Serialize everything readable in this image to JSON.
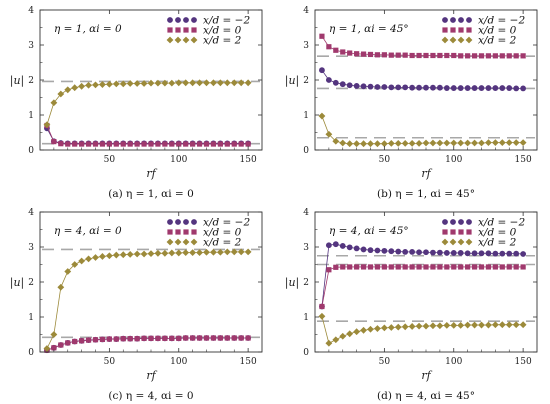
{
  "colors": {
    "xd_m2": "#54357f",
    "xd_0": "#a0396d",
    "xd_2": "#9c8a3a",
    "dash": "#a8a8a8",
    "axis": "#333333"
  },
  "chart_data": [
    {
      "type": "scatter",
      "inner_label": "η = 1, αi = 0",
      "caption": "(a)  η = 1, αi = 0",
      "xlabel": "rf",
      "ylabel": "|u|",
      "xlim": [
        0,
        160
      ],
      "ylim": [
        0,
        4
      ],
      "xticks": [
        "50",
        "100",
        "150"
      ],
      "yticks": [
        "0",
        "1",
        "2",
        "3",
        "4"
      ],
      "legend_position": "top-right",
      "x": [
        5,
        10,
        15,
        20,
        25,
        30,
        35,
        40,
        45,
        50,
        55,
        60,
        65,
        70,
        75,
        80,
        85,
        90,
        95,
        100,
        105,
        110,
        115,
        120,
        125,
        130,
        135,
        140,
        145,
        150
      ],
      "series": [
        {
          "name": "x/d = −2",
          "marker": "circle",
          "values": [
            0.62,
            0.25,
            0.2,
            0.19,
            0.19,
            0.19,
            0.19,
            0.19,
            0.19,
            0.19,
            0.19,
            0.19,
            0.19,
            0.19,
            0.19,
            0.19,
            0.19,
            0.19,
            0.19,
            0.19,
            0.19,
            0.19,
            0.19,
            0.19,
            0.19,
            0.19,
            0.19,
            0.19,
            0.19,
            0.19
          ]
        },
        {
          "name": "x/d = 0",
          "marker": "square",
          "values": [
            0.7,
            0.24,
            0.18,
            0.17,
            0.17,
            0.17,
            0.17,
            0.17,
            0.17,
            0.17,
            0.17,
            0.17,
            0.17,
            0.17,
            0.17,
            0.17,
            0.17,
            0.17,
            0.17,
            0.17,
            0.17,
            0.17,
            0.17,
            0.17,
            0.17,
            0.17,
            0.17,
            0.17,
            0.17,
            0.17
          ]
        },
        {
          "name": "x/d = 2",
          "marker": "diamond",
          "values": [
            0.72,
            1.35,
            1.6,
            1.72,
            1.78,
            1.82,
            1.85,
            1.86,
            1.87,
            1.88,
            1.89,
            1.89,
            1.9,
            1.9,
            1.9,
            1.91,
            1.91,
            1.91,
            1.91,
            1.92,
            1.92,
            1.92,
            1.92,
            1.92,
            1.92,
            1.92,
            1.92,
            1.92,
            1.92,
            1.92
          ]
        }
      ],
      "reference_lines": [
        1.96,
        0.18
      ]
    },
    {
      "type": "scatter",
      "inner_label": "η = 1, αi = 45°",
      "caption": "(b)  η = 1, αi = 45°",
      "xlabel": "rf",
      "ylabel": "|u|",
      "xlim": [
        0,
        160
      ],
      "ylim": [
        0,
        4
      ],
      "xticks": [
        "50",
        "100",
        "150"
      ],
      "yticks": [
        "0",
        "1",
        "2",
        "3",
        "4"
      ],
      "legend_position": "top-right",
      "x": [
        5,
        10,
        15,
        20,
        25,
        30,
        35,
        40,
        45,
        50,
        55,
        60,
        65,
        70,
        75,
        80,
        85,
        90,
        95,
        100,
        105,
        110,
        115,
        120,
        125,
        130,
        135,
        140,
        145,
        150
      ],
      "series": [
        {
          "name": "x/d = −2",
          "marker": "circle",
          "values": [
            2.28,
            2.0,
            1.92,
            1.88,
            1.85,
            1.83,
            1.82,
            1.81,
            1.8,
            1.8,
            1.79,
            1.79,
            1.79,
            1.78,
            1.78,
            1.78,
            1.78,
            1.78,
            1.77,
            1.77,
            1.77,
            1.77,
            1.77,
            1.77,
            1.77,
            1.77,
            1.77,
            1.77,
            1.76,
            1.76
          ]
        },
        {
          "name": "x/d = 0",
          "marker": "square",
          "values": [
            3.25,
            2.95,
            2.85,
            2.8,
            2.77,
            2.75,
            2.74,
            2.73,
            2.72,
            2.72,
            2.71,
            2.71,
            2.71,
            2.7,
            2.7,
            2.7,
            2.7,
            2.7,
            2.7,
            2.7,
            2.69,
            2.69,
            2.69,
            2.69,
            2.69,
            2.69,
            2.69,
            2.69,
            2.69,
            2.69
          ]
        },
        {
          "name": "x/d = 2",
          "marker": "diamond",
          "values": [
            0.97,
            0.45,
            0.25,
            0.2,
            0.18,
            0.18,
            0.18,
            0.18,
            0.18,
            0.18,
            0.19,
            0.19,
            0.19,
            0.19,
            0.19,
            0.2,
            0.2,
            0.2,
            0.2,
            0.2,
            0.2,
            0.2,
            0.2,
            0.2,
            0.21,
            0.21,
            0.21,
            0.21,
            0.21,
            0.21
          ]
        }
      ],
      "reference_lines": [
        2.68,
        1.76,
        0.35
      ]
    },
    {
      "type": "scatter",
      "inner_label": "η = 4, αi = 0",
      "caption": "(c)  η = 4, αi = 0",
      "xlabel": "rf",
      "ylabel": "|u|",
      "xlim": [
        0,
        160
      ],
      "ylim": [
        0,
        4
      ],
      "xticks": [
        "50",
        "100",
        "150"
      ],
      "yticks": [
        "0",
        "1",
        "2",
        "3",
        "4"
      ],
      "legend_position": "top-right",
      "x": [
        5,
        10,
        15,
        20,
        25,
        30,
        35,
        40,
        45,
        50,
        55,
        60,
        65,
        70,
        75,
        80,
        85,
        90,
        95,
        100,
        105,
        110,
        115,
        120,
        125,
        130,
        135,
        140,
        145,
        150
      ],
      "series": [
        {
          "name": "x/d = −2",
          "marker": "circle",
          "values": [
            0.05,
            0.12,
            0.2,
            0.26,
            0.3,
            0.32,
            0.34,
            0.35,
            0.36,
            0.37,
            0.37,
            0.38,
            0.38,
            0.38,
            0.39,
            0.39,
            0.39,
            0.39,
            0.39,
            0.39,
            0.4,
            0.4,
            0.4,
            0.4,
            0.4,
            0.4,
            0.4,
            0.4,
            0.4,
            0.4
          ]
        },
        {
          "name": "x/d = 0",
          "marker": "square",
          "values": [
            0.05,
            0.12,
            0.2,
            0.26,
            0.3,
            0.32,
            0.34,
            0.35,
            0.36,
            0.37,
            0.37,
            0.38,
            0.38,
            0.38,
            0.39,
            0.39,
            0.39,
            0.39,
            0.39,
            0.39,
            0.4,
            0.4,
            0.4,
            0.4,
            0.4,
            0.4,
            0.4,
            0.4,
            0.4,
            0.4
          ]
        },
        {
          "name": "x/d = 2",
          "marker": "diamond",
          "values": [
            0.1,
            0.5,
            1.85,
            2.3,
            2.5,
            2.6,
            2.66,
            2.7,
            2.73,
            2.75,
            2.77,
            2.78,
            2.79,
            2.8,
            2.8,
            2.81,
            2.82,
            2.82,
            2.83,
            2.83,
            2.84,
            2.84,
            2.84,
            2.85,
            2.85,
            2.85,
            2.86,
            2.86,
            2.86,
            2.86
          ]
        }
      ],
      "reference_lines": [
        2.93,
        0.42
      ]
    },
    {
      "type": "scatter",
      "inner_label": "η = 4, αi = 45°",
      "caption": "(d)  η = 4, αi = 45°",
      "xlabel": "rf",
      "ylabel": "|u|",
      "xlim": [
        0,
        160
      ],
      "ylim": [
        0,
        4
      ],
      "xticks": [
        "50",
        "100",
        "150"
      ],
      "yticks": [
        "0",
        "1",
        "2",
        "3",
        "4"
      ],
      "legend_position": "top-right",
      "x": [
        5,
        10,
        15,
        20,
        25,
        30,
        35,
        40,
        45,
        50,
        55,
        60,
        65,
        70,
        75,
        80,
        85,
        90,
        95,
        100,
        105,
        110,
        115,
        120,
        125,
        130,
        135,
        140,
        145,
        150
      ],
      "series": [
        {
          "name": "x/d = −2",
          "marker": "circle",
          "values": [
            1.3,
            3.05,
            3.08,
            3.03,
            2.99,
            2.96,
            2.93,
            2.91,
            2.9,
            2.89,
            2.88,
            2.87,
            2.86,
            2.86,
            2.85,
            2.85,
            2.84,
            2.84,
            2.83,
            2.83,
            2.83,
            2.82,
            2.82,
            2.82,
            2.82,
            2.81,
            2.81,
            2.81,
            2.81,
            2.8
          ]
        },
        {
          "name": "x/d = 0",
          "marker": "square",
          "values": [
            1.3,
            2.35,
            2.42,
            2.43,
            2.43,
            2.43,
            2.43,
            2.43,
            2.43,
            2.43,
            2.43,
            2.43,
            2.43,
            2.43,
            2.43,
            2.43,
            2.43,
            2.43,
            2.43,
            2.43,
            2.43,
            2.43,
            2.43,
            2.43,
            2.43,
            2.43,
            2.43,
            2.43,
            2.43,
            2.43
          ]
        },
        {
          "name": "x/d = 2",
          "marker": "diamond",
          "values": [
            1.02,
            0.25,
            0.35,
            0.45,
            0.52,
            0.58,
            0.62,
            0.65,
            0.67,
            0.69,
            0.7,
            0.71,
            0.72,
            0.73,
            0.74,
            0.74,
            0.75,
            0.75,
            0.76,
            0.76,
            0.76,
            0.77,
            0.77,
            0.77,
            0.77,
            0.78,
            0.78,
            0.78,
            0.78,
            0.78
          ]
        }
      ],
      "reference_lines": [
        2.75,
        2.5,
        0.88
      ]
    }
  ]
}
